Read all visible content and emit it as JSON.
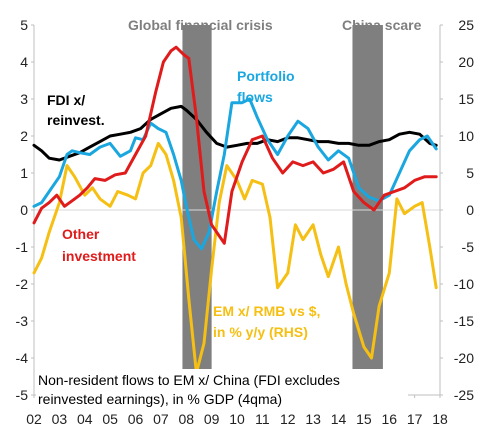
{
  "chart_data": {
    "type": "line",
    "xlim": [
      2002,
      2018
    ],
    "x_tick_labels": [
      "02",
      "03",
      "04",
      "05",
      "06",
      "07",
      "08",
      "09",
      "10",
      "11",
      "12",
      "13",
      "14",
      "15",
      "16",
      "17",
      "18"
    ],
    "left_axis": {
      "ylim": [
        -5,
        5
      ],
      "tick_labels": [
        "5",
        "4",
        "3",
        "2",
        "1",
        "0",
        "-1",
        "-2",
        "-3",
        "-4",
        "-5"
      ]
    },
    "right_axis": {
      "ylim": [
        -25,
        25
      ],
      "tick_labels": [
        "25",
        "20",
        "15",
        "10",
        "5",
        "0",
        "-5",
        "-10",
        "-15",
        "-20",
        "-25"
      ]
    },
    "shaded_periods": [
      {
        "label": "Global financial crisis",
        "start": 2007.85,
        "end": 2009.0,
        "color": "#7f7f7f"
      },
      {
        "label": "China scare",
        "start": 2014.55,
        "end": 2015.75,
        "color": "#7f7f7f"
      }
    ],
    "series": [
      {
        "name": "FDI x/ reinvest.",
        "axis": "left",
        "color": "#000000",
        "points": [
          [
            2002.0,
            1.75
          ],
          [
            2002.3,
            1.6
          ],
          [
            2002.6,
            1.4
          ],
          [
            2003.0,
            1.35
          ],
          [
            2003.4,
            1.45
          ],
          [
            2003.8,
            1.55
          ],
          [
            2004.2,
            1.7
          ],
          [
            2004.6,
            1.85
          ],
          [
            2005.0,
            2.0
          ],
          [
            2005.4,
            2.05
          ],
          [
            2005.8,
            2.1
          ],
          [
            2006.2,
            2.2
          ],
          [
            2006.6,
            2.45
          ],
          [
            2007.0,
            2.6
          ],
          [
            2007.4,
            2.75
          ],
          [
            2007.8,
            2.8
          ],
          [
            2008.0,
            2.7
          ],
          [
            2008.4,
            2.45
          ],
          [
            2008.8,
            2.1
          ],
          [
            2009.2,
            1.8
          ],
          [
            2009.6,
            1.7
          ],
          [
            2010.0,
            1.75
          ],
          [
            2010.4,
            1.8
          ],
          [
            2010.8,
            1.8
          ],
          [
            2011.2,
            1.9
          ],
          [
            2011.6,
            1.85
          ],
          [
            2012.0,
            1.95
          ],
          [
            2012.4,
            1.95
          ],
          [
            2012.8,
            1.9
          ],
          [
            2013.2,
            1.85
          ],
          [
            2013.6,
            1.85
          ],
          [
            2014.0,
            1.8
          ],
          [
            2014.4,
            1.8
          ],
          [
            2014.8,
            1.75
          ],
          [
            2015.2,
            1.75
          ],
          [
            2015.6,
            1.85
          ],
          [
            2016.0,
            1.9
          ],
          [
            2016.4,
            2.05
          ],
          [
            2016.8,
            2.1
          ],
          [
            2017.2,
            2.05
          ],
          [
            2017.6,
            1.8
          ],
          [
            2017.85,
            1.75
          ]
        ]
      },
      {
        "name": "Portfolio flows",
        "axis": "left",
        "color": "#1aa7e0",
        "points": [
          [
            2002.0,
            0.1
          ],
          [
            2002.3,
            0.2
          ],
          [
            2002.6,
            0.5
          ],
          [
            2003.0,
            0.9
          ],
          [
            2003.3,
            1.5
          ],
          [
            2003.5,
            1.6
          ],
          [
            2003.8,
            1.55
          ],
          [
            2004.2,
            1.5
          ],
          [
            2004.6,
            1.7
          ],
          [
            2005.0,
            1.8
          ],
          [
            2005.4,
            1.45
          ],
          [
            2005.8,
            1.6
          ],
          [
            2006.0,
            1.95
          ],
          [
            2006.3,
            1.9
          ],
          [
            2006.6,
            2.35
          ],
          [
            2006.9,
            2.2
          ],
          [
            2007.2,
            2.1
          ],
          [
            2007.5,
            1.5
          ],
          [
            2007.8,
            0.8
          ],
          [
            2008.0,
            0.1
          ],
          [
            2008.3,
            -0.8
          ],
          [
            2008.6,
            -1.05
          ],
          [
            2008.9,
            -0.6
          ],
          [
            2009.2,
            0.5
          ],
          [
            2009.5,
            1.5
          ],
          [
            2009.8,
            2.9
          ],
          [
            2010.2,
            2.9
          ],
          [
            2010.5,
            3.0
          ],
          [
            2010.8,
            2.5
          ],
          [
            2011.2,
            1.9
          ],
          [
            2011.6,
            1.5
          ],
          [
            2012.0,
            2.0
          ],
          [
            2012.4,
            2.4
          ],
          [
            2012.8,
            2.2
          ],
          [
            2013.2,
            1.7
          ],
          [
            2013.6,
            1.35
          ],
          [
            2014.0,
            1.6
          ],
          [
            2014.4,
            1.4
          ],
          [
            2014.8,
            0.6
          ],
          [
            2015.2,
            0.35
          ],
          [
            2015.6,
            0.25
          ],
          [
            2016.0,
            0.4
          ],
          [
            2016.4,
            1.0
          ],
          [
            2016.8,
            1.6
          ],
          [
            2017.2,
            1.9
          ],
          [
            2017.5,
            2.0
          ],
          [
            2017.85,
            1.65
          ]
        ]
      },
      {
        "name": "Other investment",
        "axis": "left",
        "color": "#e01b1b",
        "points": [
          [
            2002.0,
            -0.35
          ],
          [
            2002.3,
            0.05
          ],
          [
            2002.6,
            0.2
          ],
          [
            2002.9,
            0.4
          ],
          [
            2003.2,
            0.1
          ],
          [
            2003.5,
            0.25
          ],
          [
            2003.8,
            0.4
          ],
          [
            2004.1,
            0.6
          ],
          [
            2004.4,
            0.85
          ],
          [
            2004.8,
            0.8
          ],
          [
            2005.2,
            0.95
          ],
          [
            2005.6,
            1.0
          ],
          [
            2006.0,
            1.5
          ],
          [
            2006.4,
            2.0
          ],
          [
            2006.8,
            3.2
          ],
          [
            2007.1,
            4.0
          ],
          [
            2007.4,
            4.3
          ],
          [
            2007.6,
            4.4
          ],
          [
            2007.9,
            4.2
          ],
          [
            2008.1,
            4.1
          ],
          [
            2008.4,
            2.5
          ],
          [
            2008.7,
            0.5
          ],
          [
            2009.0,
            -0.4
          ],
          [
            2009.3,
            -0.7
          ],
          [
            2009.5,
            -0.9
          ],
          [
            2009.8,
            0.5
          ],
          [
            2010.2,
            1.3
          ],
          [
            2010.6,
            1.9
          ],
          [
            2011.0,
            2.0
          ],
          [
            2011.4,
            1.4
          ],
          [
            2011.8,
            1.0
          ],
          [
            2012.2,
            1.3
          ],
          [
            2012.6,
            1.2
          ],
          [
            2013.0,
            1.3
          ],
          [
            2013.4,
            1.0
          ],
          [
            2013.8,
            1.1
          ],
          [
            2014.2,
            1.3
          ],
          [
            2014.6,
            0.5
          ],
          [
            2015.0,
            0.2
          ],
          [
            2015.4,
            0.0
          ],
          [
            2015.8,
            0.4
          ],
          [
            2016.2,
            0.5
          ],
          [
            2016.6,
            0.6
          ],
          [
            2017.0,
            0.8
          ],
          [
            2017.4,
            0.9
          ],
          [
            2017.85,
            0.9
          ]
        ]
      },
      {
        "name": "EM x/ RMB vs $, in % y/y (RHS)",
        "axis": "right",
        "color": "#f5bf13",
        "points": [
          [
            2002.0,
            -8.5
          ],
          [
            2002.3,
            -6.5
          ],
          [
            2002.6,
            -3.0
          ],
          [
            2003.0,
            1.0
          ],
          [
            2003.3,
            6.0
          ],
          [
            2003.6,
            4.5
          ],
          [
            2004.0,
            2.0
          ],
          [
            2004.3,
            3.0
          ],
          [
            2004.6,
            1.5
          ],
          [
            2005.0,
            0.5
          ],
          [
            2005.3,
            2.5
          ],
          [
            2005.7,
            2.0
          ],
          [
            2006.0,
            1.5
          ],
          [
            2006.3,
            5.0
          ],
          [
            2006.6,
            6.0
          ],
          [
            2006.9,
            9.0
          ],
          [
            2007.2,
            7.5
          ],
          [
            2007.5,
            4.0
          ],
          [
            2007.8,
            -1.0
          ],
          [
            2008.1,
            -12.0
          ],
          [
            2008.4,
            -22.0
          ],
          [
            2008.7,
            -18.0
          ],
          [
            2009.0,
            -8.0
          ],
          [
            2009.3,
            1.0
          ],
          [
            2009.6,
            6.0
          ],
          [
            2010.0,
            4.0
          ],
          [
            2010.3,
            1.5
          ],
          [
            2010.6,
            4.0
          ],
          [
            2011.0,
            3.5
          ],
          [
            2011.3,
            -1.0
          ],
          [
            2011.6,
            -10.5
          ],
          [
            2012.0,
            -8.5
          ],
          [
            2012.3,
            -2.0
          ],
          [
            2012.6,
            -4.0
          ],
          [
            2013.0,
            -2.0
          ],
          [
            2013.3,
            -6.0
          ],
          [
            2013.6,
            -9.0
          ],
          [
            2014.0,
            -5.0
          ],
          [
            2014.3,
            -10.0
          ],
          [
            2014.6,
            -14.0
          ],
          [
            2015.0,
            -18.5
          ],
          [
            2015.3,
            -20.0
          ],
          [
            2015.6,
            -13.0
          ],
          [
            2016.0,
            -8.5
          ],
          [
            2016.3,
            1.5
          ],
          [
            2016.6,
            -0.5
          ],
          [
            2017.0,
            0.5
          ],
          [
            2017.3,
            1.0
          ],
          [
            2017.6,
            -5.0
          ],
          [
            2017.85,
            -10.5
          ]
        ]
      }
    ],
    "annotations": [
      {
        "text": "Global financial crisis"
      },
      {
        "text": "China scare"
      },
      {
        "text": "FDI x/",
        "series": "FDI x/ reinvest."
      },
      {
        "text": "reinvest.",
        "series": "FDI x/ reinvest."
      },
      {
        "text": "Portfolio",
        "series": "Portfolio flows"
      },
      {
        "text": "flows",
        "series": "Portfolio flows"
      },
      {
        "text": "Other",
        "series": "Other investment"
      },
      {
        "text": "investment",
        "series": "Other investment"
      },
      {
        "text": "EM x/ RMB vs $,",
        "series": "EM x/ RMB vs $, in % y/y (RHS)"
      },
      {
        "text": "in % y/y (RHS)",
        "series": "EM x/ RMB vs $, in % y/y (RHS)"
      }
    ],
    "footnote_lines": [
      "Non-resident flows to EM x/ China (FDI excludes",
      "reinvested earnings), in % GDP (4qma)"
    ],
    "grid": false
  }
}
